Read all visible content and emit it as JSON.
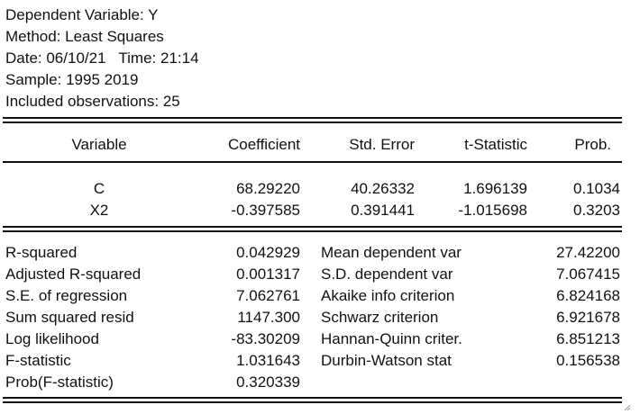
{
  "header": {
    "dependent": "Dependent Variable: Y",
    "method": "Method: Least Squares",
    "datetime": "Date: 06/10/21   Time: 21:14",
    "sample": "Sample: 1995 2019",
    "included": "Included observations: 25"
  },
  "columns": {
    "variable": "Variable",
    "coefficient": "Coefficient",
    "std_error": "Std. Error",
    "t_statistic": "t-Statistic",
    "prob": "Prob."
  },
  "coefficients": [
    {
      "variable": "C",
      "coefficient": "68.29220",
      "std_error": "40.26332",
      "t_statistic": "1.696139",
      "prob": "0.1034"
    },
    {
      "variable": "X2",
      "coefficient": "-0.397585",
      "std_error": "0.391441",
      "t_statistic": "-1.015698",
      "prob": "0.3203"
    }
  ],
  "stats_left": [
    {
      "label": "R-squared",
      "value": "0.042929"
    },
    {
      "label": "Adjusted R-squared",
      "value": "0.001317"
    },
    {
      "label": "S.E. of regression",
      "value": "7.062761"
    },
    {
      "label": "Sum squared resid",
      "value": "1147.300"
    },
    {
      "label": "Log likelihood",
      "value": "-83.30209"
    },
    {
      "label": "F-statistic",
      "value": "1.031643"
    },
    {
      "label": "Prob(F-statistic)",
      "value": "0.320339"
    }
  ],
  "stats_right": [
    {
      "label": "Mean dependent var",
      "value": "27.42200"
    },
    {
      "label": "S.D. dependent var",
      "value": "7.067415"
    },
    {
      "label": "Akaike info criterion",
      "value": "6.824168"
    },
    {
      "label": "Schwarz criterion",
      "value": "6.921678"
    },
    {
      "label": "Hannan-Quinn criter.",
      "value": "6.851213"
    },
    {
      "label": "Durbin-Watson stat",
      "value": "0.156538"
    }
  ]
}
